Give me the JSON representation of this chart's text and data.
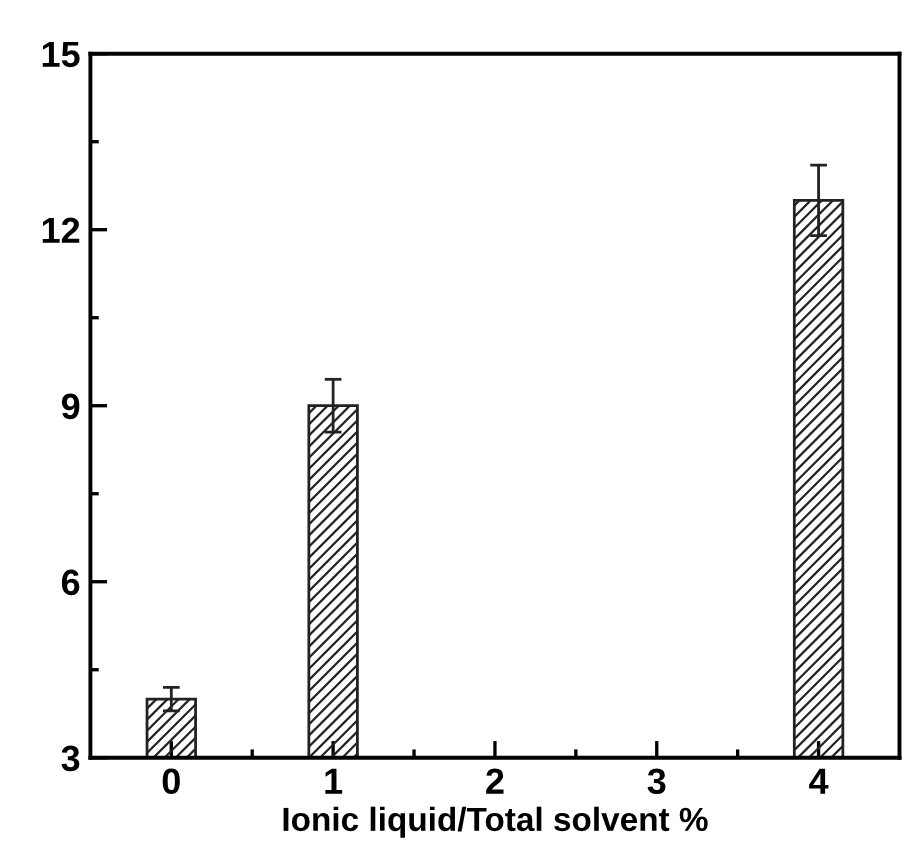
{
  "chart_data": {
    "type": "bar",
    "xlabel": "Ionic liquid/Total solvent %",
    "x": [
      0,
      1,
      2,
      3,
      4
    ],
    "values": [
      4.0,
      9.0,
      null,
      null,
      12.5
    ],
    "errors": [
      0.2,
      0.45,
      null,
      null,
      0.6
    ],
    "color": "#222222",
    "xlim": [
      -0.5,
      4.5
    ],
    "xticks": [
      0,
      1,
      2,
      3,
      4
    ],
    "ylim": [
      3,
      15
    ],
    "yticks": [
      3,
      6,
      9,
      12,
      15
    ],
    "grid": false,
    "legend": false
  }
}
